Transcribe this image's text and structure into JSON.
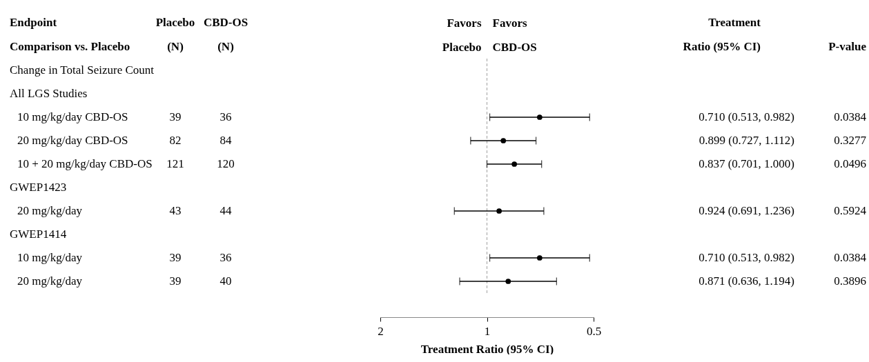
{
  "chart_data": [
    {
      "type": "other",
      "title": "Endpoint",
      "subtitle": "Comparison vs. Placebo",
      "categories": [
        "Change in Total Seizure Count",
        "All LGS Studies",
        "10 mg/kg/day CBD-OS",
        "20 mg/kg/day CBD-OS",
        "10 + 20 mg/kg/day CBD-OS",
        "GWEP1423",
        "20 mg/kg/day",
        "GWEP1414",
        "10 mg/kg/day",
        "20 mg/kg/day"
      ]
    },
    {
      "type": "other",
      "title": "Placebo",
      "subtitle": "(N)",
      "categories": [
        null,
        null,
        null,
        null,
        null,
        null,
        null,
        null,
        null,
        null
      ],
      "values": [
        null,
        null,
        39,
        82,
        121,
        null,
        43,
        null,
        39,
        39
      ],
      "data_labels": true
    },
    {
      "type": "other",
      "title": "CBD-OS",
      "subtitle": "(N)",
      "categories": [
        null,
        null,
        null,
        null,
        null,
        null,
        null,
        null,
        null,
        null
      ],
      "values": [
        null,
        null,
        36,
        84,
        120,
        null,
        44,
        null,
        36,
        40
      ],
      "data_labels": true
    },
    {
      "type": "scatter",
      "orientation": "horizontal",
      "categories": [
        null,
        null,
        null,
        null,
        null,
        null,
        null,
        null,
        null,
        null
      ],
      "values": [
        null,
        null,
        0.71,
        0.899,
        0.837,
        null,
        0.924,
        null,
        0.71,
        0.871
      ],
      "errors": [
        null,
        null,
        [
          0.513,
          0.982
        ],
        [
          0.727,
          1.112
        ],
        [
          0.701,
          1.0
        ],
        null,
        [
          0.691,
          1.236
        ],
        null,
        [
          0.513,
          0.982
        ],
        [
          0.636,
          1.194
        ]
      ],
      "color": "#000000",
      "marker": "circle",
      "log": "x",
      "xlim": [
        2,
        0.5
      ],
      "xticks": [
        2,
        1,
        0.5
      ],
      "xlabel": "Treatment Ratio (95% CI)",
      "ref_lines": [
        {
          "axis": "x",
          "value": 1,
          "color": "#a0a0a0",
          "line_style": "dashed"
        }
      ],
      "annotations": [
        "Favors Placebo",
        "Favors CBD-OS"
      ]
    },
    {
      "type": "other",
      "title": "Treatment",
      "subtitle": "Ratio (95% CI)",
      "categories": [
        null,
        null,
        null,
        null,
        null,
        null,
        null,
        null,
        null,
        null
      ],
      "values": [
        null,
        null,
        0.71,
        0.899,
        0.837,
        null,
        0.924,
        null,
        0.71,
        0.871
      ],
      "value_labels": [
        null,
        null,
        "0.710 (0.513, 0.982)",
        "0.899 (0.727, 1.112)",
        "0.837 (0.701, 1.000)",
        null,
        "0.924 (0.691, 1.236)",
        null,
        "0.710 (0.513, 0.982)",
        "0.871 (0.636, 1.194)"
      ]
    },
    {
      "type": "other",
      "title": "P-value",
      "categories": [
        null,
        null,
        null,
        null,
        null,
        null,
        null,
        null,
        null,
        null
      ],
      "values": [
        null,
        null,
        0.0384,
        0.3277,
        0.0496,
        null,
        0.5924,
        null,
        0.0384,
        0.3896
      ],
      "data_labels": true
    }
  ]
}
